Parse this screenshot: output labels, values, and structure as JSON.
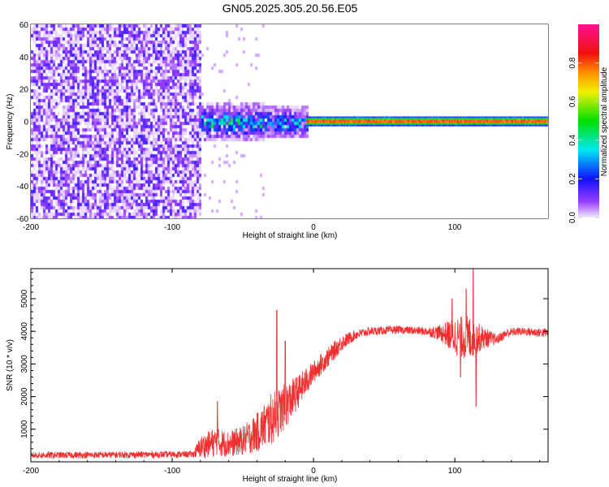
{
  "chart_data": [
    {
      "type": "heatmap",
      "title": "GN05.2025.305.20.56.E05",
      "xlabel": "Height of straight line (km)",
      "ylabel": "Frequency (Hz)",
      "xlim": [
        -200,
        166
      ],
      "ylim": [
        -60,
        60
      ],
      "xticks": [
        -200,
        -100,
        0,
        100
      ],
      "yticks": [
        -60,
        -40,
        -20,
        0,
        20,
        40,
        60
      ],
      "colorbar": {
        "label": "Normalized spectral amplitude",
        "range": [
          0,
          1
        ],
        "ticks": [
          "0.0",
          "0.2",
          "0.4",
          "0.6",
          "0.8"
        ],
        "tick_values": [
          0,
          0.2,
          0.4,
          0.6,
          0.8
        ],
        "stops": [
          {
            "v": 0.0,
            "color": "#f2e8ff"
          },
          {
            "v": 0.08,
            "color": "#9a40ff"
          },
          {
            "v": 0.2,
            "color": "#1010ff"
          },
          {
            "v": 0.35,
            "color": "#00e8f0"
          },
          {
            "v": 0.5,
            "color": "#00e000"
          },
          {
            "v": 0.65,
            "color": "#f0f000"
          },
          {
            "v": 0.75,
            "color": "#ff9000"
          },
          {
            "v": 0.85,
            "color": "#f01010"
          },
          {
            "v": 1.0,
            "color": "#ff1090"
          }
        ]
      },
      "regions": [
        {
          "name": "broadband noise",
          "x": [
            -200,
            -80
          ],
          "freq": [
            -60,
            60
          ],
          "amplitude": 0.12
        },
        {
          "name": "weak scatter",
          "x": [
            -80,
            -35
          ],
          "freq": [
            -60,
            60
          ],
          "amplitude": 0.03
        },
        {
          "name": "developing signal",
          "x": [
            -80,
            -5
          ],
          "freq": [
            -12,
            12
          ],
          "amplitude": 0.35
        },
        {
          "name": "steady tone",
          "x": [
            -5,
            166
          ],
          "freq": [
            -1.5,
            1.5
          ],
          "amplitude": 0.85
        }
      ]
    },
    {
      "type": "line",
      "xlabel": "Height of straight line (km)",
      "ylabel": "SNR (10 * v/v)",
      "xlim": [
        -200,
        166
      ],
      "ylim": [
        0,
        5920
      ],
      "xticks": [
        -200,
        -100,
        0,
        100
      ],
      "yticks": [
        1000,
        2000,
        3000,
        4000,
        5000
      ],
      "color": "#f03030",
      "series_profile": {
        "x": [
          -200,
          -85,
          -80,
          -70,
          -60,
          -50,
          -40,
          -30,
          -20,
          -10,
          0,
          10,
          20,
          30,
          40,
          60,
          80,
          90,
          100,
          110,
          120,
          130,
          137,
          145,
          166
        ],
        "mean": [
          200,
          230,
          450,
          600,
          550,
          650,
          900,
          1300,
          1700,
          2200,
          2750,
          3200,
          3650,
          3900,
          4000,
          4050,
          4000,
          3950,
          3850,
          3800,
          3800,
          3750,
          3950,
          4000,
          3950
        ],
        "noise": [
          100,
          100,
          350,
          450,
          400,
          450,
          600,
          800,
          700,
          500,
          350,
          300,
          250,
          150,
          130,
          120,
          130,
          250,
          600,
          700,
          350,
          150,
          150,
          120,
          150
        ]
      },
      "spikes": [
        {
          "x": -68,
          "y": 1850
        },
        {
          "x": -26,
          "y": 4650
        },
        {
          "x": -20,
          "y": 3700
        },
        {
          "x": 98,
          "y": 5000
        },
        {
          "x": 104,
          "y": 2600
        },
        {
          "x": 108,
          "y": 5300
        },
        {
          "x": 113,
          "y": 5900
        },
        {
          "x": 115,
          "y": 1700
        }
      ]
    }
  ]
}
